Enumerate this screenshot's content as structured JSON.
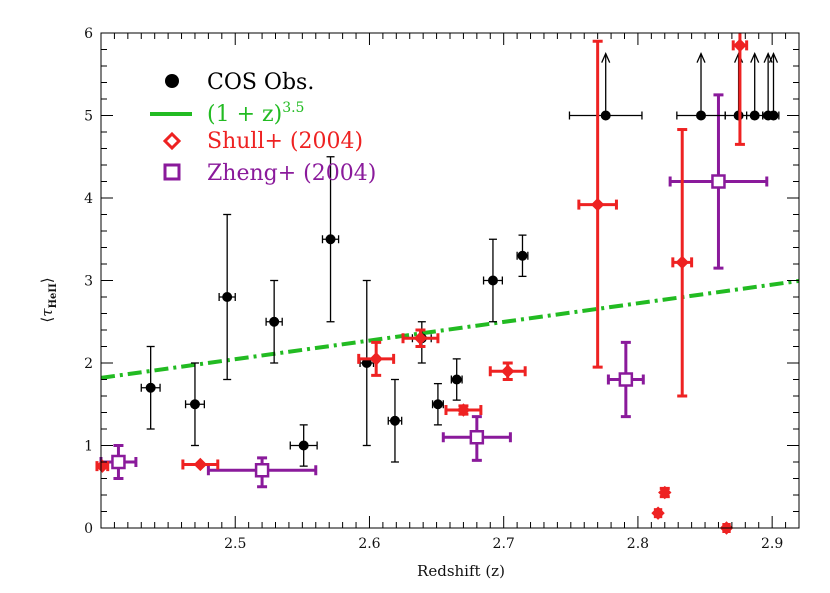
{
  "chart_data": {
    "type": "scatter",
    "title": "",
    "xlabel": "Redshift (z)",
    "ylabel": "⟨τ_HeII⟩",
    "xlim": [
      2.4,
      2.92
    ],
    "ylim": [
      0,
      6
    ],
    "xticks": [
      "2.5",
      "2.6",
      "2.7",
      "2.8",
      "2.9"
    ],
    "yticks": [
      "0",
      "1",
      "2",
      "3",
      "4",
      "5",
      "6"
    ],
    "grid": false,
    "legend_position": "top-left",
    "legend": [
      {
        "key": "cos",
        "label": "COS Obs.",
        "color": "#000000",
        "marker": "filled-circle"
      },
      {
        "key": "model",
        "label": "(1 + z)",
        "superscript": "3.5",
        "color": "#22bb22",
        "marker": "dash-dot-line"
      },
      {
        "key": "shull",
        "label": "Shull+ (2004)",
        "color": "#ee2222",
        "marker": "open-diamond"
      },
      {
        "key": "zheng",
        "label": "Zheng+ (2004)",
        "color": "#8a1a9b",
        "marker": "open-square"
      }
    ],
    "series": [
      {
        "key": "cos",
        "name": "COS Obs.",
        "color": "#000000",
        "points": [
          {
            "x": 2.437,
            "xerr": 0.007,
            "y": 1.7,
            "ylo": 1.2,
            "yhi": 2.2
          },
          {
            "x": 2.47,
            "xerr": 0.007,
            "y": 1.5,
            "ylo": 1.0,
            "yhi": 2.0
          },
          {
            "x": 2.494,
            "xerr": 0.006,
            "y": 2.8,
            "ylo": 1.8,
            "yhi": 3.8
          },
          {
            "x": 2.529,
            "xerr": 0.006,
            "y": 2.5,
            "ylo": 2.0,
            "yhi": 3.0
          },
          {
            "x": 2.551,
            "xerr": 0.01,
            "y": 1.0,
            "ylo": 0.75,
            "yhi": 1.25
          },
          {
            "x": 2.571,
            "xerr": 0.006,
            "y": 3.5,
            "ylo": 2.5,
            "yhi": 4.5
          },
          {
            "x": 2.598,
            "xerr": 0.005,
            "y": 2.0,
            "ylo": 1.0,
            "yhi": 3.0
          },
          {
            "x": 2.619,
            "xerr": 0.005,
            "y": 1.3,
            "ylo": 0.8,
            "yhi": 1.8
          },
          {
            "x": 2.639,
            "xerr": 0.007,
            "y": 2.3,
            "ylo": 2.0,
            "yhi": 2.5
          },
          {
            "x": 2.651,
            "xerr": 0.004,
            "y": 1.5,
            "ylo": 1.25,
            "yhi": 1.75
          },
          {
            "x": 2.665,
            "xerr": 0.004,
            "y": 1.8,
            "ylo": 1.55,
            "yhi": 2.05
          },
          {
            "x": 2.692,
            "xerr": 0.007,
            "y": 3.0,
            "ylo": 2.5,
            "yhi": 3.5
          },
          {
            "x": 2.714,
            "xerr": 0.004,
            "y": 3.3,
            "ylo": 3.05,
            "yhi": 3.55
          },
          {
            "x": 2.776,
            "xerr": 0.027,
            "y": 5.0,
            "lower_limit": true
          },
          {
            "x": 2.847,
            "xerr": 0.018,
            "y": 5.0,
            "lower_limit": true
          },
          {
            "x": 2.875,
            "xerr": 0.01,
            "y": 5.0,
            "lower_limit": true
          },
          {
            "x": 2.887,
            "xerr": 0.006,
            "y": 5.0,
            "lower_limit": true
          },
          {
            "x": 2.897,
            "xerr": 0.004,
            "y": 5.0,
            "lower_limit": true
          },
          {
            "x": 2.901,
            "xerr": 0.004,
            "y": 5.0,
            "lower_limit": true
          }
        ]
      },
      {
        "key": "shull",
        "name": "Shull+ (2004)",
        "color": "#ee2222",
        "points": [
          {
            "x": 2.401,
            "xerr": 0.004,
            "y": 0.75,
            "ylo": 0.75,
            "yhi": 0.75
          },
          {
            "x": 2.474,
            "xerr": 0.013,
            "y": 0.77,
            "ylo": 0.77,
            "yhi": 0.77
          },
          {
            "x": 2.605,
            "xerr": 0.013,
            "y": 2.05,
            "ylo": 1.85,
            "yhi": 2.25
          },
          {
            "x": 2.638,
            "xerr": 0.013,
            "y": 2.3,
            "ylo": 2.2,
            "yhi": 2.4
          },
          {
            "x": 2.67,
            "xerr": 0.013,
            "y": 1.43,
            "ylo": 1.38,
            "yhi": 1.48
          },
          {
            "x": 2.703,
            "xerr": 0.013,
            "y": 1.9,
            "ylo": 1.8,
            "yhi": 2.0
          },
          {
            "x": 2.77,
            "xerr": 0.014,
            "y": 3.92,
            "ylo": 1.95,
            "yhi": 5.9
          },
          {
            "x": 2.815,
            "xerr": 0.002,
            "y": 0.18,
            "ylo": 0.18,
            "yhi": 0.18
          },
          {
            "x": 2.82,
            "xerr": 0.002,
            "y": 0.43,
            "ylo": 0.38,
            "yhi": 0.48
          },
          {
            "x": 2.833,
            "xerr": 0.007,
            "y": 3.22,
            "ylo": 1.6,
            "yhi": 4.83
          },
          {
            "x": 2.866,
            "xerr": 0.002,
            "y": 0.0,
            "ylo": 0.0,
            "yhi": 0.0
          },
          {
            "x": 2.876,
            "xerr": 0.005,
            "y": 5.85,
            "ylo": 4.65,
            "yhi": 6.0
          }
        ]
      },
      {
        "key": "zheng",
        "name": "Zheng+ (2004)",
        "color": "#8a1a9b",
        "points": [
          {
            "x": 2.413,
            "xerr": 0.013,
            "y": 0.8,
            "ylo": 0.6,
            "yhi": 1.0
          },
          {
            "x": 2.52,
            "xerr": 0.04,
            "y": 0.7,
            "ylo": 0.5,
            "yhi": 0.85
          },
          {
            "x": 2.68,
            "xerr": 0.025,
            "y": 1.1,
            "ylo": 0.82,
            "yhi": 1.35
          },
          {
            "x": 2.791,
            "xerr": 0.013,
            "y": 1.8,
            "ylo": 1.35,
            "yhi": 2.25
          },
          {
            "x": 2.86,
            "xerr": 0.036,
            "y": 4.2,
            "ylo": 3.15,
            "yhi": 5.25
          }
        ]
      },
      {
        "key": "model",
        "name": "(1 + z)^3.5",
        "color": "#22bb22",
        "model": {
          "x_start": 2.4,
          "x_end": 2.92,
          "y_at_start": 1.82,
          "exponent": 3.5
        }
      }
    ]
  }
}
